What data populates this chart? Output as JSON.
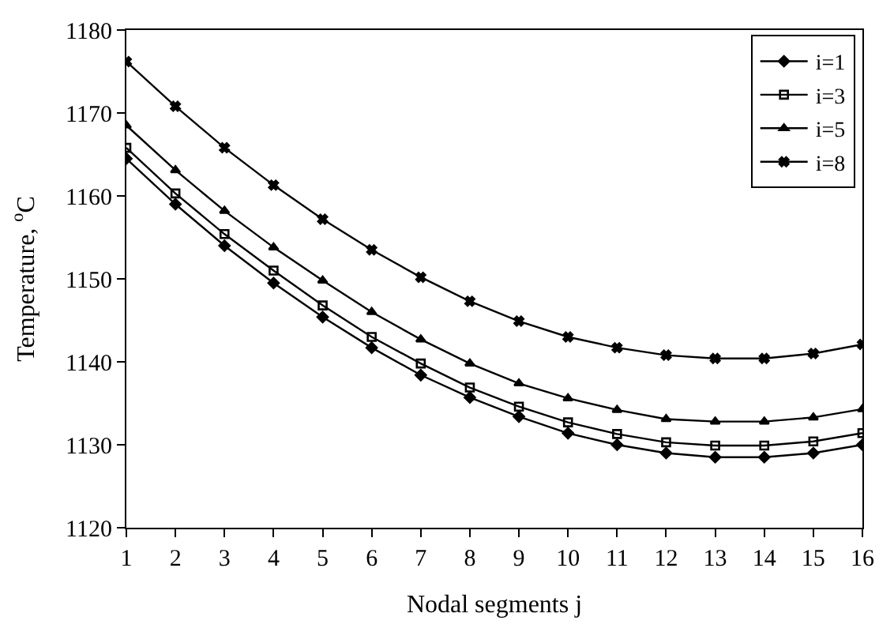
{
  "chart_data": {
    "type": "line",
    "xlabel": "Nodal segments j",
    "ylabel": "Temperature, $^{o}$C",
    "x": [
      1,
      2,
      3,
      4,
      5,
      6,
      7,
      8,
      9,
      10,
      11,
      12,
      13,
      14,
      15,
      16
    ],
    "xlim": [
      1,
      16
    ],
    "xticks": [
      1,
      2,
      3,
      4,
      5,
      6,
      7,
      8,
      9,
      10,
      11,
      12,
      13,
      14,
      15,
      16
    ],
    "ylim": [
      1120,
      1180
    ],
    "yticks": [
      1120,
      1130,
      1140,
      1150,
      1160,
      1170,
      1180
    ],
    "grid": false,
    "legend": "top right",
    "line_style": "solid",
    "series": [
      {
        "name": "i=1",
        "color": "#000000",
        "marker": "diamond",
        "values": [
          1164.5,
          1159.0,
          1154.0,
          1149.5,
          1145.4,
          1141.7,
          1138.4,
          1135.7,
          1133.4,
          1131.4,
          1130.0,
          1129.0,
          1128.5,
          1128.5,
          1129.0,
          1130.0
        ]
      },
      {
        "name": "i=3",
        "color": "#000000",
        "marker": "square",
        "values": [
          1165.8,
          1160.3,
          1155.4,
          1151.0,
          1146.8,
          1143.0,
          1139.8,
          1136.9,
          1134.6,
          1132.7,
          1131.3,
          1130.3,
          1129.9,
          1129.9,
          1130.4,
          1131.4
        ]
      },
      {
        "name": "i=5",
        "color": "#000000",
        "marker": "triangle",
        "values": [
          1168.5,
          1163.1,
          1158.2,
          1153.8,
          1149.8,
          1146.0,
          1142.7,
          1139.8,
          1137.4,
          1135.6,
          1134.2,
          1133.1,
          1132.8,
          1132.8,
          1133.3,
          1134.3
        ]
      },
      {
        "name": "i=8",
        "color": "#000000",
        "marker": "cross",
        "values": [
          1176.2,
          1170.8,
          1165.8,
          1161.3,
          1157.2,
          1153.5,
          1150.2,
          1147.3,
          1144.9,
          1143.0,
          1141.7,
          1140.8,
          1140.4,
          1140.4,
          1141.0,
          1142.1
        ]
      }
    ]
  }
}
